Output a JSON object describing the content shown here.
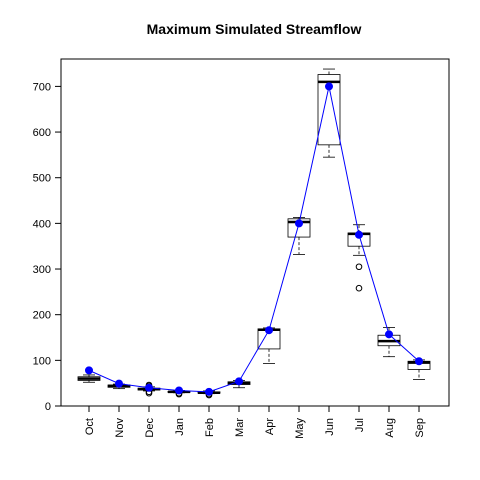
{
  "chart_data": {
    "type": "box",
    "title": "Maximum Simulated Streamflow",
    "xlabel": "",
    "ylabel": "",
    "ylim": [
      0,
      760
    ],
    "y_ticks": [
      0,
      100,
      200,
      300,
      400,
      500,
      600,
      700
    ],
    "y_tick_labels": [
      "0",
      "100",
      "200",
      "300",
      "400",
      "500",
      "600",
      "700"
    ],
    "categories": [
      "Oct",
      "Nov",
      "Dec",
      "Jan",
      "Feb",
      "Mar",
      "Apr",
      "May",
      "Jun",
      "Jul",
      "Aug",
      "Sep"
    ],
    "boxes": [
      {
        "min": 52,
        "q1": 56,
        "median": 60,
        "q3": 64,
        "max": 68,
        "outliers": []
      },
      {
        "min": 38,
        "q1": 41,
        "median": 44,
        "q3": 46,
        "max": 48,
        "outliers": []
      },
      {
        "min": 33,
        "q1": 35,
        "median": 37,
        "q3": 39,
        "max": 42,
        "outliers": [
          28,
          31,
          44,
          46
        ]
      },
      {
        "min": 29,
        "q1": 30,
        "median": 31,
        "q3": 32,
        "max": 34,
        "outliers": [
          26,
          28
        ]
      },
      {
        "min": 27,
        "q1": 28,
        "median": 29,
        "q3": 31,
        "max": 33,
        "outliers": [
          24,
          26
        ]
      },
      {
        "min": 40,
        "q1": 47,
        "median": 50,
        "q3": 53,
        "max": 56,
        "outliers": []
      },
      {
        "min": 93,
        "q1": 125,
        "median": 167,
        "q3": 169,
        "max": 171,
        "outliers": []
      },
      {
        "min": 332,
        "q1": 370,
        "median": 403,
        "q3": 410,
        "max": 413,
        "outliers": []
      },
      {
        "min": 545,
        "q1": 572,
        "median": 710,
        "q3": 726,
        "max": 738,
        "outliers": []
      },
      {
        "min": 330,
        "q1": 350,
        "median": 377,
        "q3": 379,
        "max": 397,
        "outliers": [
          258,
          305
        ]
      },
      {
        "min": 108,
        "q1": 132,
        "median": 142,
        "q3": 155,
        "max": 172,
        "outliers": []
      },
      {
        "min": 58,
        "q1": 80,
        "median": 95,
        "q3": 98,
        "max": 101,
        "outliers": []
      }
    ],
    "mean_series": {
      "color": "#0000ff",
      "values": [
        78,
        49,
        40,
        34,
        31,
        54,
        166,
        400,
        700,
        375,
        157,
        98
      ]
    },
    "grid": false,
    "legend": "none"
  }
}
